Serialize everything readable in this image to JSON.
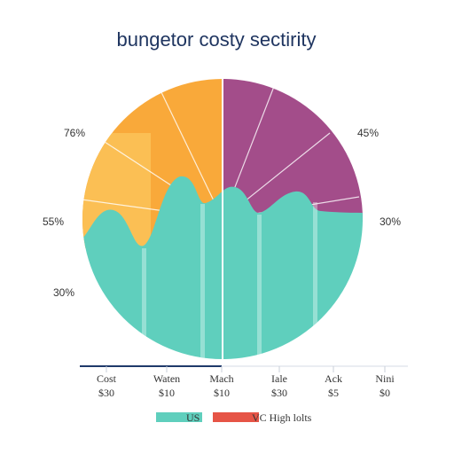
{
  "chart_data": {
    "type": "pie",
    "title": "bungetor costy sectirity",
    "colors": {
      "orange": "#f9a93a",
      "orange_light": "#fbbf54",
      "purple": "#a34d8a",
      "teal": "#5fcfbd",
      "legend_red": "#e65446",
      "axis": "#1f3a6a"
    },
    "slice_labels": [
      {
        "text": "76%"
      },
      {
        "text": "45%"
      },
      {
        "text": "55%"
      },
      {
        "text": "30%"
      },
      {
        "text": "30%"
      }
    ],
    "categories": [
      "Cost",
      "Waten",
      "Mach",
      "Iale",
      "Ack",
      "Nini"
    ],
    "values_text": [
      "$30",
      "$10",
      "$10",
      "$30",
      "$5",
      "$0"
    ],
    "legend": [
      {
        "name": "US",
        "color": "#5fcfbd"
      },
      {
        "name": "VC High lolts",
        "color": "#e65446"
      }
    ]
  }
}
